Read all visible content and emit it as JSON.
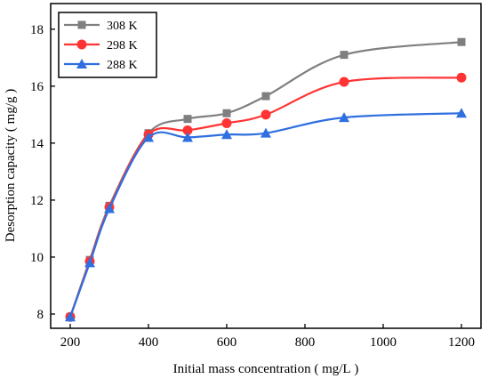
{
  "chart_data": {
    "type": "line",
    "xlabel": "Initial mass concentration ( mg/L )",
    "ylabel": "Desorption capacity ( mg/g )",
    "xlim": [
      150,
      1250
    ],
    "ylim": [
      7.5,
      18.9
    ],
    "xticks": [
      200,
      400,
      600,
      800,
      1000,
      1200
    ],
    "yticks": [
      8,
      10,
      12,
      14,
      16,
      18
    ],
    "legend_position": "top-left",
    "grid": false,
    "x": [
      200,
      250,
      300,
      400,
      500,
      600,
      700,
      900,
      1200
    ],
    "series": [
      {
        "name": "308 K",
        "color": "#7f7f7f",
        "marker": "square",
        "values": [
          7.9,
          9.9,
          11.8,
          14.35,
          14.85,
          15.05,
          15.65,
          17.1,
          17.55
        ]
      },
      {
        "name": "298 K",
        "color": "#ff3333",
        "marker": "circle",
        "values": [
          7.9,
          9.85,
          11.75,
          14.3,
          14.45,
          14.7,
          15.0,
          16.15,
          16.3
        ]
      },
      {
        "name": "288 K",
        "color": "#2f6fe0",
        "marker": "triangle",
        "values": [
          7.9,
          9.8,
          11.7,
          14.2,
          14.2,
          14.3,
          14.35,
          14.9,
          15.05
        ]
      }
    ]
  }
}
